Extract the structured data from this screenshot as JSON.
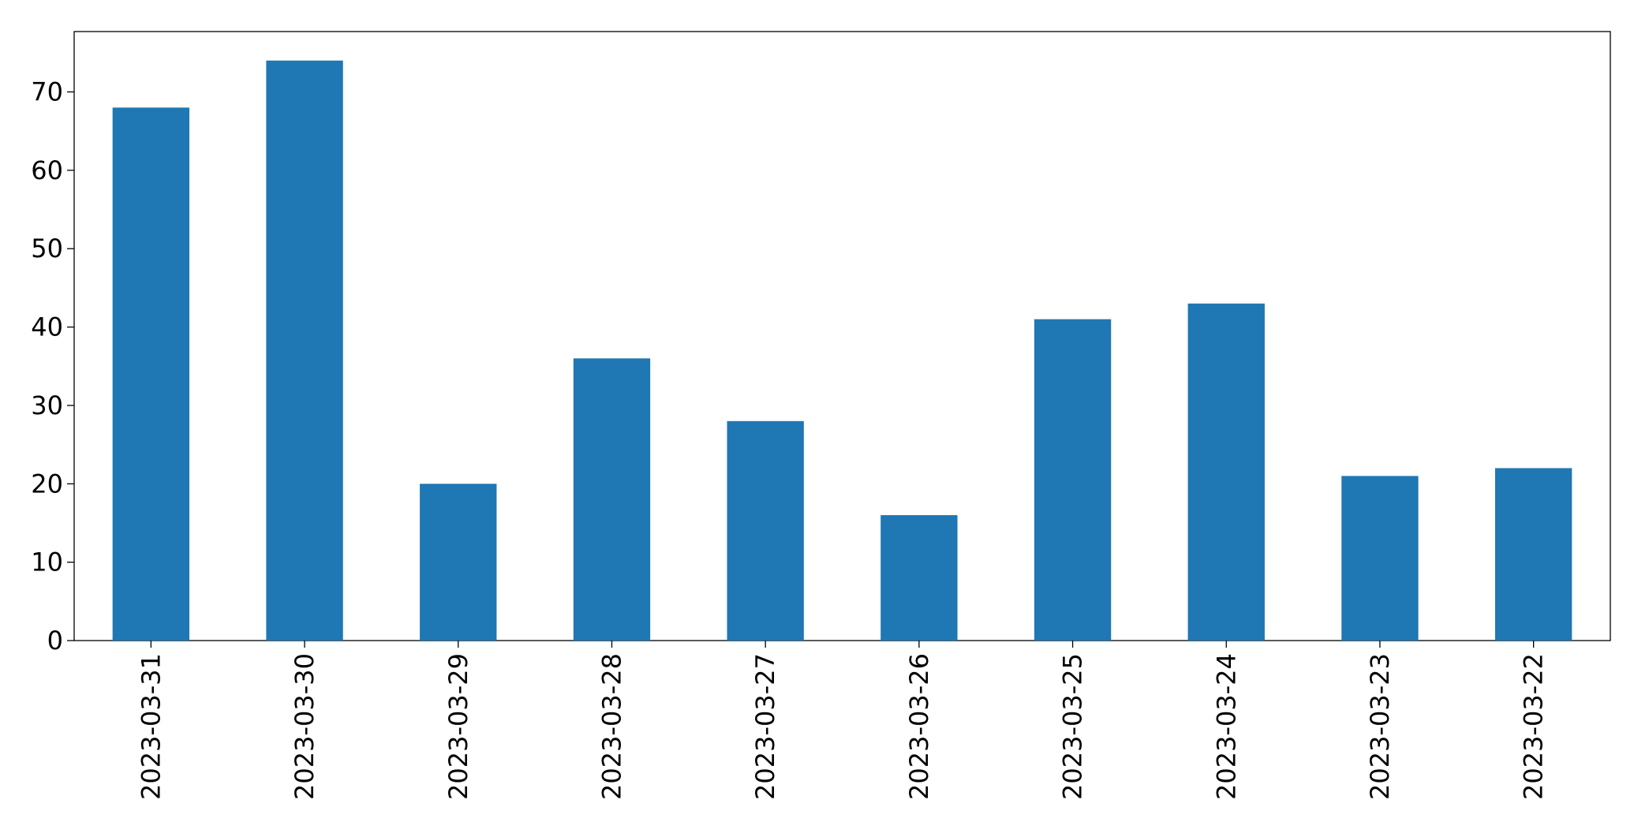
{
  "chart_data": {
    "type": "bar",
    "categories": [
      "2023-03-31",
      "2023-03-30",
      "2023-03-29",
      "2023-03-28",
      "2023-03-27",
      "2023-03-26",
      "2023-03-25",
      "2023-03-24",
      "2023-03-23",
      "2023-03-22"
    ],
    "values": [
      68,
      74,
      20,
      36,
      28,
      16,
      41,
      43,
      21,
      22
    ],
    "color": "#1f77b4",
    "ylim": [
      0,
      77.7
    ],
    "yticks": [
      0,
      10,
      20,
      30,
      40,
      50,
      60,
      70
    ],
    "grid": false
  }
}
